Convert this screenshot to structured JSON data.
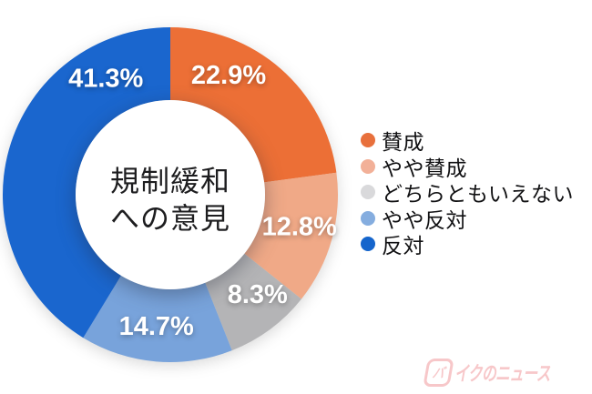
{
  "chart_data": {
    "type": "pie",
    "subtype": "donut",
    "title": "規制緩和への意見",
    "center_label_lines": [
      "規制緩和",
      "への意見"
    ],
    "unit": "%",
    "total": 100,
    "start_angle_deg": 0,
    "direction": "clockwise",
    "legend_position": "right",
    "slices": [
      {
        "label": "賛成",
        "value": 22.9,
        "display": "22.9%",
        "color": "#EC6F36",
        "legend_color": "#E8703C",
        "label_angle_deg": 26
      },
      {
        "label": "やや賛成",
        "value": 12.8,
        "display": "12.8%",
        "color": "#F0A987",
        "legend_color": "#F2B098",
        "label_angle_deg": 104
      },
      {
        "label": "どちらともいえない",
        "value": 8.3,
        "display": "8.3%",
        "color": "#B4B4B6",
        "legend_color": "#D9D9DB",
        "label_angle_deg": 139
      },
      {
        "label": "やや反対",
        "value": 14.7,
        "display": "14.7%",
        "color": "#78A3DB",
        "legend_color": "#85ADDF",
        "label_angle_deg": 186
      },
      {
        "label": "反対",
        "value": 41.3,
        "display": "41.3%",
        "color": "#1A66CE",
        "legend_color": "#1565CC",
        "label_angle_deg": 331
      }
    ]
  },
  "watermark": {
    "boxed_char": "バ",
    "text": "イクのニュース"
  }
}
